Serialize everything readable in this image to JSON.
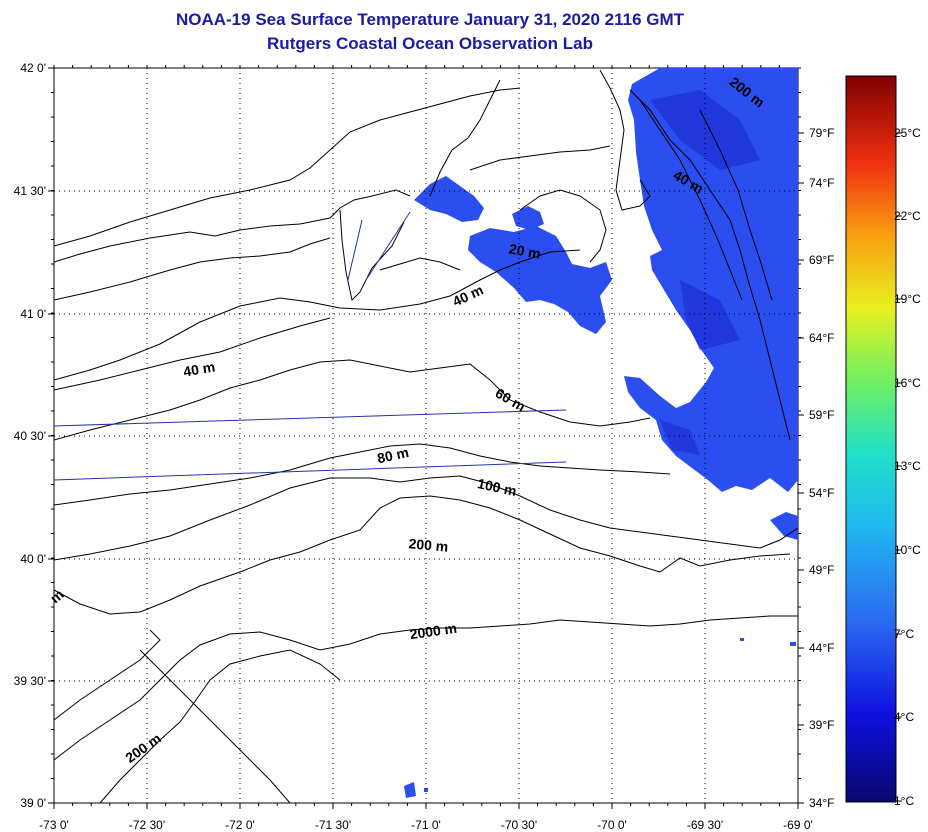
{
  "title": "NOAA-19 Sea Surface Temperature January 31, 2020 2116 GMT",
  "subtitle": "Rutgers Coastal Ocean Observation Lab",
  "latitude_ticks": [
    "42 0'",
    "41 30'",
    "41 0'",
    "40 30'",
    "40 0'",
    "39 30'",
    "39 0'"
  ],
  "longitude_ticks": [
    "-73 0'",
    "-72 30'",
    "-72 0'",
    "-71 30'",
    "-71 0'",
    "-70 30'",
    "-70 0'",
    "-69 30'",
    "-69 0'"
  ],
  "fahrenheit_ticks": [
    "79°F",
    "74°F",
    "69°F",
    "64°F",
    "59°F",
    "54°F",
    "49°F",
    "44°F",
    "39°F",
    "34°F"
  ],
  "celsius_ticks": [
    "25°C",
    "22°C",
    "19°C",
    "16°C",
    "13°C",
    "10°C",
    "7°C",
    "4°C",
    "1°C"
  ],
  "contour_labels": [
    {
      "text": "200 m"
    },
    {
      "text": "40 m"
    },
    {
      "text": "20 m"
    },
    {
      "text": "40 m"
    },
    {
      "text": "40 m"
    },
    {
      "text": "60 m"
    },
    {
      "text": "80 m"
    },
    {
      "text": "100 m"
    },
    {
      "text": "200 m"
    },
    {
      "text": "2000 m"
    },
    {
      "text": "200 m"
    },
    {
      "text": "m"
    }
  ],
  "colors": {
    "title": "#1a1aa8",
    "sst_patch": "#2a4ef0",
    "sst_patch_dark": "#1c2fd6",
    "ship_track": "#2233aa"
  }
}
